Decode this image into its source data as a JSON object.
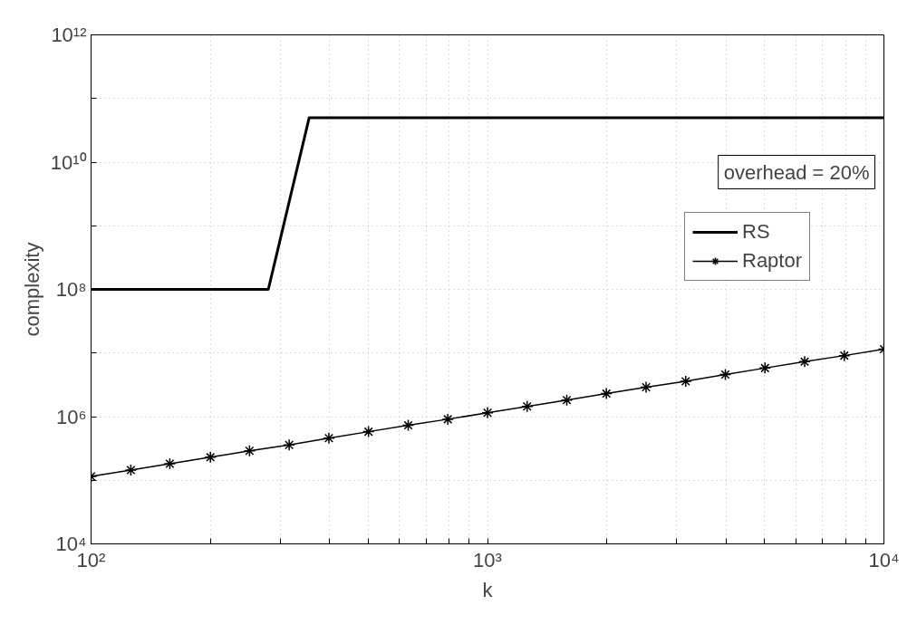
{
  "chart_data": {
    "type": "line",
    "xlabel": "k",
    "ylabel": "complexity",
    "log": "xy",
    "grid": true,
    "legend": "top right",
    "annotations": [
      "overhead = 20%"
    ],
    "xlim": [
      100,
      10000
    ],
    "ylim": [
      10000,
      1000000000000
    ],
    "xticks": [
      {
        "value": 100,
        "label": "10²"
      },
      {
        "value": 200,
        "label": null
      },
      {
        "value": 300,
        "label": null
      },
      {
        "value": 400,
        "label": null
      },
      {
        "value": 500,
        "label": null
      },
      {
        "value": 600,
        "label": null
      },
      {
        "value": 700,
        "label": null
      },
      {
        "value": 800,
        "label": null
      },
      {
        "value": 900,
        "label": null
      },
      {
        "value": 1000,
        "label": "10³"
      },
      {
        "value": 2000,
        "label": null
      },
      {
        "value": 3000,
        "label": null
      },
      {
        "value": 4000,
        "label": null
      },
      {
        "value": 5000,
        "label": null
      },
      {
        "value": 6000,
        "label": null
      },
      {
        "value": 7000,
        "label": null
      },
      {
        "value": 8000,
        "label": null
      },
      {
        "value": 9000,
        "label": null
      },
      {
        "value": 10000,
        "label": "10⁴"
      }
    ],
    "yticks": [
      {
        "value": 10000,
        "label": "10⁴"
      },
      {
        "value": 100000,
        "label": null
      },
      {
        "value": 1000000,
        "label": "10⁶"
      },
      {
        "value": 10000000,
        "label": null
      },
      {
        "value": 100000000,
        "label": "10⁸"
      },
      {
        "value": 1000000000,
        "label": null
      },
      {
        "value": 10000000000,
        "label": "10¹⁰"
      },
      {
        "value": 100000000000,
        "label": null
      },
      {
        "value": 1000000000000,
        "label": "10¹²"
      }
    ],
    "series": [
      {
        "name": "RS",
        "color": "#000000",
        "marker": "none",
        "x": [
          100,
          280,
          355,
          10000
        ],
        "values": [
          100000000,
          100000000,
          50000000000,
          50000000000
        ]
      },
      {
        "name": "Raptor",
        "color": "#000000",
        "marker": "cross",
        "x": [
          100,
          126,
          158,
          200,
          251,
          316,
          398,
          501,
          631,
          794,
          1000,
          1259,
          1585,
          1995,
          2512,
          3162,
          3981,
          5012,
          6310,
          7943,
          10000
        ],
        "values": [
          115000,
          145000,
          182000,
          230000,
          290000,
          360000,
          460000,
          580000,
          730000,
          910000,
          1150000,
          1450000,
          1820000,
          2300000,
          2900000,
          3600000,
          4600000,
          5800000,
          7300000,
          9100000,
          11500000
        ]
      }
    ]
  }
}
